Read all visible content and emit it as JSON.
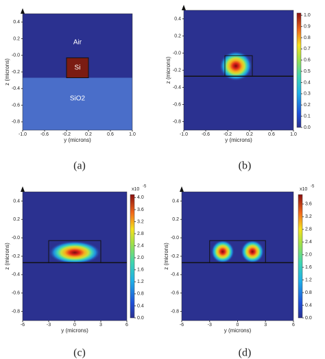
{
  "chart_data": [
    {
      "type": "cross-section",
      "caption": "(a)",
      "xlabel": "y (microns)",
      "ylabel": "z (microns)",
      "xlim": [
        -1,
        1
      ],
      "ylim": [
        -0.9,
        0.5
      ],
      "xticks": [
        {
          "value": -1,
          "label": "-1.0"
        },
        -0.6,
        -0.2,
        0.2,
        0.6,
        {
          "value": 1,
          "label": "1.0"
        }
      ],
      "yticks": [
        0.4,
        0.2,
        {
          "value": 0,
          "label": "-0.0"
        },
        -0.2,
        -0.4,
        -0.6,
        -0.8
      ],
      "regions": [
        {
          "label": "Air",
          "color": "#2b3190"
        },
        {
          "label": "Si",
          "color": "#7b1c12"
        },
        {
          "label": "SiO2",
          "color": "#4a6ec9"
        }
      ],
      "core": {
        "ymin": -0.2,
        "ymax": 0.2,
        "zmin": -0.27,
        "zmax": -0.03
      },
      "substrate_top": -0.27
    },
    {
      "type": "heatmap",
      "caption": "(b)",
      "xlabel": "y (microns)",
      "ylabel": "z (microns)",
      "xlim": [
        -1,
        1
      ],
      "ylim": [
        -0.9,
        0.5
      ],
      "xticks": [
        {
          "value": -1,
          "label": "-1.0"
        },
        -0.6,
        -0.2,
        0.2,
        0.6,
        {
          "value": 1,
          "label": "1.0"
        }
      ],
      "yticks": [
        0.4,
        0.2,
        {
          "value": 0,
          "label": "-0.0"
        },
        -0.2,
        -0.4,
        -0.6,
        -0.8
      ],
      "clim": [
        0,
        1.02
      ],
      "cticks": [
        {
          "value": 0,
          "label": "0.0"
        },
        0.1,
        0.2,
        0.3,
        0.4,
        0.5,
        0.6,
        0.7,
        0.8,
        0.9,
        {
          "value": 1,
          "label": "1.0"
        }
      ],
      "core": {
        "ymin": -0.25,
        "ymax": 0.25,
        "zmin": -0.27,
        "zmax": -0.03
      },
      "substrate_top": -0.27,
      "peaks": [
        {
          "y": -0.05,
          "z": -0.15,
          "value": 1
        }
      ]
    },
    {
      "type": "heatmap",
      "caption": "(c)",
      "xlabel": "y (microns)",
      "ylabel": "z (microns)",
      "xlim": [
        -6,
        6
      ],
      "ylim": [
        -0.9,
        0.5
      ],
      "xticks": [
        -6,
        -3,
        0,
        3,
        6
      ],
      "yticks": [
        0.4,
        0.2,
        {
          "value": 0,
          "label": "-0.0"
        },
        -0.2,
        -0.4,
        -0.6,
        -0.8
      ],
      "clim": [
        0,
        4.1
      ],
      "colorbar_scale": {
        "base": "x10",
        "exponent": "-5"
      },
      "cticks": [
        {
          "value": 0,
          "label": "0.0"
        },
        0.4,
        0.8,
        1.2,
        1.6,
        {
          "value": 2,
          "label": "2.0"
        },
        2.4,
        2.8,
        3.2,
        3.6,
        {
          "value": 4,
          "label": "4.0"
        }
      ],
      "core": {
        "ymin": -3,
        "ymax": 3,
        "zmin": -0.27,
        "zmax": -0.03
      },
      "substrate_top": -0.27,
      "peaks": [
        {
          "y": 0,
          "z": -0.16,
          "value": 4
        }
      ]
    },
    {
      "type": "heatmap",
      "caption": "(d)",
      "xlabel": "y (microns)",
      "ylabel": "z (microns)",
      "xlim": [
        -6,
        6
      ],
      "ylim": [
        -0.9,
        0.5
      ],
      "xticks": [
        -6,
        -3,
        0,
        3,
        6
      ],
      "yticks": [
        0.4,
        0.2,
        {
          "value": 0,
          "label": "-0.0"
        },
        -0.2,
        -0.4,
        -0.6,
        -0.8
      ],
      "clim": [
        0,
        3.9
      ],
      "colorbar_scale": {
        "base": "x10",
        "exponent": "-5"
      },
      "cticks": [
        {
          "value": 0,
          "label": "0.0"
        },
        0.4,
        0.8,
        1.2,
        1.6,
        {
          "value": 2,
          "label": "2.0"
        },
        2.4,
        2.8,
        3.2,
        3.6
      ],
      "core": {
        "ymin": -3,
        "ymax": 3,
        "zmin": -0.27,
        "zmax": -0.03
      },
      "substrate_top": -0.27,
      "peaks": [
        {
          "y": -1.6,
          "z": -0.15,
          "value": 3.9
        },
        {
          "y": 1.6,
          "z": -0.15,
          "value": 3.9
        }
      ]
    }
  ]
}
